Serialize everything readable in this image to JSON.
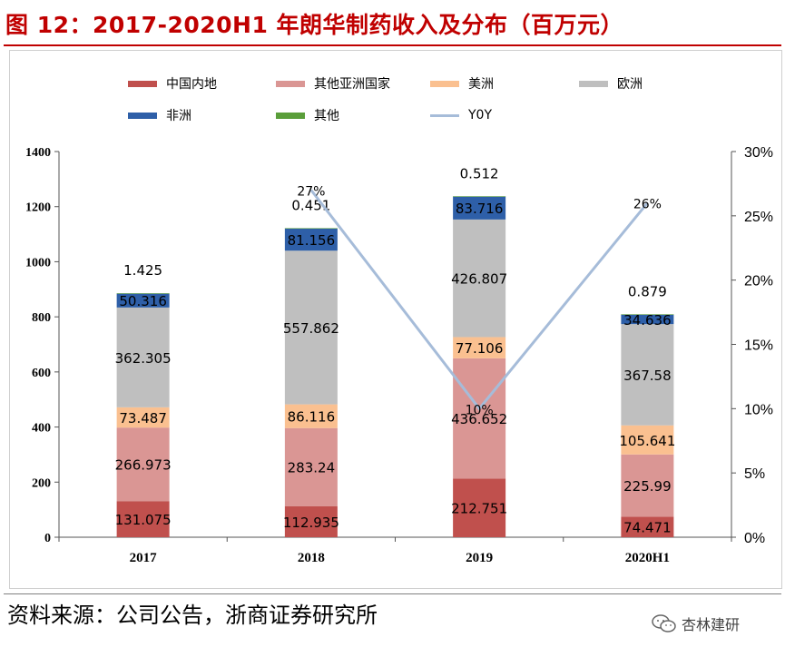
{
  "title": "图 12：2017-2020H1 年朗华制药收入及分布（百万元）",
  "source": "资料来源：公司公告，浙商证券研究所",
  "watermark": "杏林建研",
  "chart_data": {
    "type": "bar",
    "stacked": true,
    "categories": [
      "2017",
      "2018",
      "2019",
      "2020H1"
    ],
    "series": [
      {
        "name": "中国内地",
        "color": "#c0504d",
        "values": [
          131.075,
          112.935,
          212.751,
          74.471
        ],
        "labels": [
          "131.075",
          "112.935",
          "212.751",
          "74.471"
        ]
      },
      {
        "name": "其他亚洲国家",
        "color": "#da9694",
        "values": [
          266.973,
          283.24,
          436.652,
          225.99
        ],
        "labels": [
          "266.973",
          "283.24",
          "436.652",
          "225.99"
        ]
      },
      {
        "name": "美洲",
        "color": "#fac090",
        "values": [
          73.487,
          86.116,
          77.106,
          105.641
        ],
        "labels": [
          "73.487",
          "86.116",
          "77.106",
          "105.641"
        ]
      },
      {
        "name": "欧洲",
        "color": "#bfbfbf",
        "values": [
          362.305,
          557.862,
          426.807,
          367.58
        ],
        "labels": [
          "362.305",
          "557.862",
          "426.807",
          "367.58"
        ]
      },
      {
        "name": "非洲",
        "color": "#2e5fa8",
        "values": [
          50.316,
          81.156,
          83.716,
          34.636
        ],
        "labels": [
          "50.316",
          "81.156",
          "83.716",
          "34.636"
        ]
      },
      {
        "name": "其他",
        "color": "#5a9e3a",
        "values": [
          1.425,
          0.451,
          0.512,
          0.879
        ],
        "labels": [
          "1.425",
          "0.451",
          "0.512",
          "0.879"
        ]
      }
    ],
    "line": {
      "name": "Y0Y",
      "color": "#a6bcd9",
      "axis": "right",
      "points": [
        {
          "category": "2018",
          "value": 27,
          "label": "27%"
        },
        {
          "category": "2019",
          "value": 10,
          "label": "10%"
        },
        {
          "category": "2020H1",
          "value": 26,
          "label": "26%"
        }
      ]
    },
    "y_left": {
      "min": 0,
      "max": 1400,
      "ticks": [
        "0",
        "200",
        "400",
        "600",
        "800",
        "1000",
        "1200",
        "1400"
      ]
    },
    "y_right": {
      "min": 0,
      "max": 30,
      "ticks": [
        "0%",
        "5%",
        "10%",
        "15%",
        "20%",
        "25%",
        "30%"
      ]
    },
    "legend": [
      "中国内地",
      "其他亚洲国家",
      "美洲",
      "欧洲",
      "非洲",
      "其他",
      "Y0Y"
    ],
    "legend_position": "top",
    "grid": false
  }
}
